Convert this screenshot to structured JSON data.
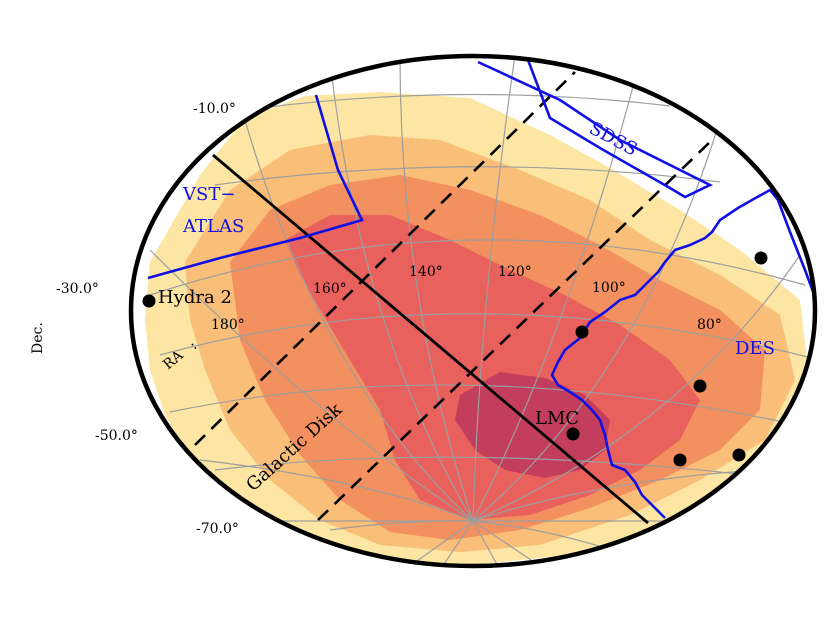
{
  "chart_data": {
    "type": "heatmap",
    "projection": "ellipse sky map (RA / Dec)",
    "xlabel": "RA",
    "ylabel": "Dec.",
    "dec_ticks": [
      "-10.0°",
      "-30.0°",
      "-50.0°",
      "-70.0°"
    ],
    "ra_ticks": [
      "180°",
      "160°",
      "140°",
      "120°",
      "100°",
      "80°"
    ],
    "density_levels": [
      {
        "level": 1,
        "color": "#fde6a3"
      },
      {
        "level": 2,
        "color": "#f9be78"
      },
      {
        "level": 3,
        "color": "#f3905f"
      },
      {
        "level": 4,
        "color": "#e9615d"
      },
      {
        "level": 5,
        "color": "#c23e5c"
      }
    ],
    "surveys": [
      {
        "label": "SDSS",
        "color": "#1010e6"
      },
      {
        "label": "VST−\nATLAS",
        "color": "#1010e6"
      },
      {
        "label": "DES",
        "color": "#1010e6"
      }
    ],
    "plane_label": "Galactic Disk",
    "objects": [
      {
        "label": "Hydra 2"
      },
      {
        "label": "LMC"
      },
      {
        "label": ""
      },
      {
        "label": ""
      },
      {
        "label": ""
      },
      {
        "label": ""
      },
      {
        "label": ""
      }
    ]
  }
}
